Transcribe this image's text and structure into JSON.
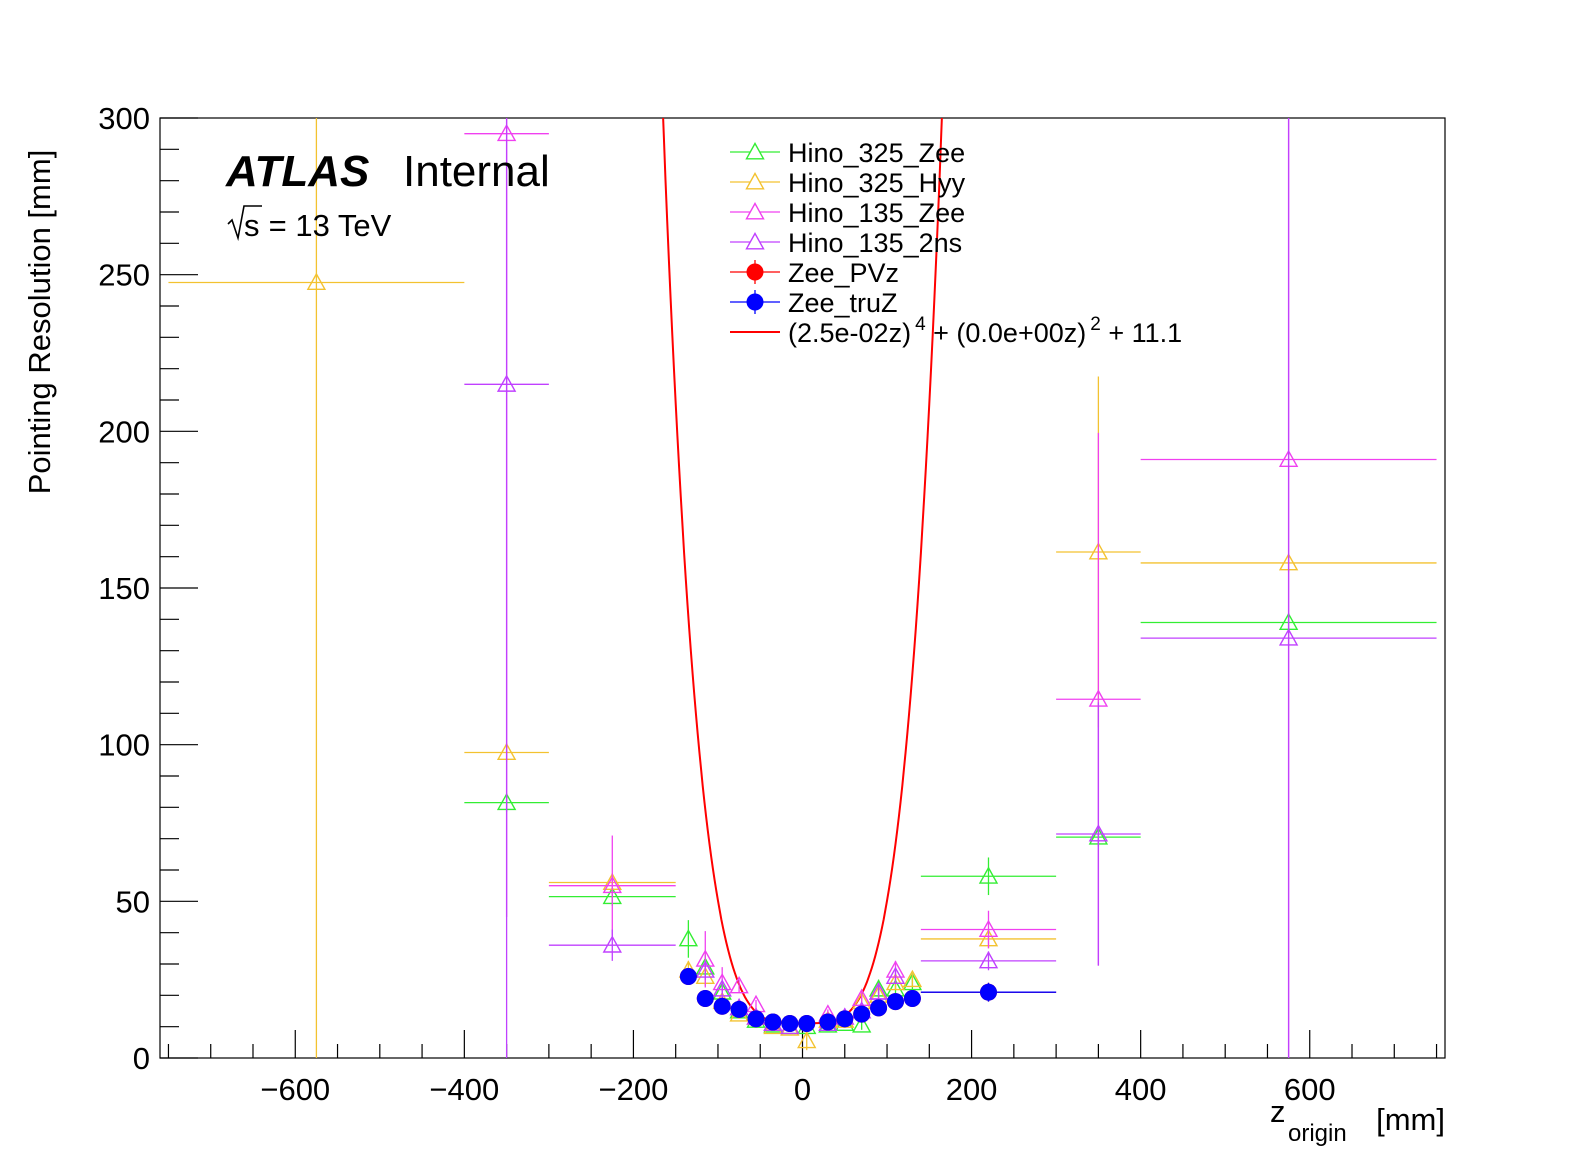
{
  "chart_data": {
    "type": "scatter",
    "title": "",
    "xlabel": "z",
    "xlabel_sub": "origin",
    "xlabel_unit": "[mm]",
    "ylabel": "Pointing Resolution [mm]",
    "xlim": [
      -760,
      760
    ],
    "ylim": [
      0,
      300
    ],
    "x_ticks": [
      -600,
      -400,
      -200,
      0,
      200,
      400,
      600
    ],
    "x_tick_labels": [
      "−600",
      "−400",
      "−200",
      "0",
      "200",
      "400",
      "600"
    ],
    "y_ticks": [
      0,
      50,
      100,
      150,
      200,
      250,
      300
    ],
    "y_tick_labels": [
      "0",
      "50",
      "100",
      "150",
      "200",
      "250",
      "300"
    ],
    "grid": false,
    "legend_position": "top-center",
    "annotations": {
      "experiment": "ATLAS",
      "status": "Internal",
      "energy_prefix": "s",
      "energy_suffix": " = 13 TeV"
    },
    "series": [
      {
        "name": "Hino_325_Zee",
        "marker": "open-triangle",
        "color": "#33ee33",
        "points": [
          {
            "x": -350,
            "xerr": 50,
            "y": 81.5,
            "yerr": 3
          },
          {
            "x": -225,
            "xerr": 75,
            "y": 51.5,
            "yerr": 3
          },
          {
            "x": -135,
            "xerr": 0,
            "y": 38,
            "yerr": 6
          },
          {
            "x": -115,
            "xerr": 0,
            "y": 29,
            "yerr": 4
          },
          {
            "x": -95,
            "xerr": 0,
            "y": 21,
            "yerr": 2
          },
          {
            "x": -75,
            "xerr": 0,
            "y": 15,
            "yerr": 1.5
          },
          {
            "x": -55,
            "xerr": 0,
            "y": 12,
            "yerr": 1
          },
          {
            "x": -35,
            "xerr": 0,
            "y": 10.5,
            "yerr": 1
          },
          {
            "x": -15,
            "xerr": 0,
            "y": 10,
            "yerr": 1
          },
          {
            "x": 5,
            "xerr": 0,
            "y": 10,
            "yerr": 1
          },
          {
            "x": 30,
            "xerr": 0,
            "y": 10.5,
            "yerr": 1
          },
          {
            "x": 50,
            "xerr": 0,
            "y": 11,
            "yerr": 1
          },
          {
            "x": 70,
            "xerr": 0,
            "y": 10.5,
            "yerr": 1.5
          },
          {
            "x": 90,
            "xerr": 0,
            "y": 22,
            "yerr": 3
          },
          {
            "x": 110,
            "xerr": 0,
            "y": 22,
            "yerr": 3
          },
          {
            "x": 130,
            "xerr": 0,
            "y": 24,
            "yerr": 3
          },
          {
            "x": 220,
            "xerr": 80,
            "y": 58,
            "yerr": 6
          },
          {
            "x": 350,
            "xerr": 50,
            "y": 70.5,
            "yerr": 3
          },
          {
            "x": 575,
            "xerr": 175,
            "y": 139,
            "yerr": 3
          }
        ]
      },
      {
        "name": "Hino_325_Hyy",
        "marker": "open-triangle",
        "color": "#f3c230",
        "points": [
          {
            "x": -575,
            "xerr": 175,
            "y": 247.5,
            "yerr": 280
          },
          {
            "x": -350,
            "xerr": 50,
            "y": 97.5,
            "yerr": 3
          },
          {
            "x": -225,
            "xerr": 75,
            "y": 56,
            "yerr": 3
          },
          {
            "x": -135,
            "xerr": 0,
            "y": 28,
            "yerr": 3
          },
          {
            "x": -115,
            "xerr": 0,
            "y": 26,
            "yerr": 3
          },
          {
            "x": -95,
            "xerr": 0,
            "y": 18,
            "yerr": 2
          },
          {
            "x": -75,
            "xerr": 0,
            "y": 14,
            "yerr": 1.5
          },
          {
            "x": -55,
            "xerr": 0,
            "y": 13,
            "yerr": 1
          },
          {
            "x": -35,
            "xerr": 0,
            "y": 10,
            "yerr": 1
          },
          {
            "x": -15,
            "xerr": 0,
            "y": 9.5,
            "yerr": 1
          },
          {
            "x": 5,
            "xerr": 0,
            "y": 5.5,
            "yerr": 3
          },
          {
            "x": 30,
            "xerr": 0,
            "y": 12,
            "yerr": 1
          },
          {
            "x": 50,
            "xerr": 0,
            "y": 12,
            "yerr": 1
          },
          {
            "x": 70,
            "xerr": 0,
            "y": 18,
            "yerr": 2
          },
          {
            "x": 90,
            "xerr": 0,
            "y": 20,
            "yerr": 2
          },
          {
            "x": 110,
            "xerr": 0,
            "y": 24,
            "yerr": 2
          },
          {
            "x": 130,
            "xerr": 0,
            "y": 25,
            "yerr": 2
          },
          {
            "x": 220,
            "xerr": 80,
            "y": 38,
            "yerr": 3
          },
          {
            "x": 350,
            "xerr": 50,
            "y": 161.5,
            "yerr": 56
          },
          {
            "x": 575,
            "xerr": 175,
            "y": 158,
            "yerr": 3
          }
        ]
      },
      {
        "name": "Hino_135_Zee",
        "marker": "open-triangle",
        "color": "#f040f0",
        "points": [
          {
            "x": -350,
            "xerr": 50,
            "y": 295,
            "yerr": 250
          },
          {
            "x": -225,
            "xerr": 75,
            "y": 55,
            "yerr": 16
          },
          {
            "x": -115,
            "xerr": 0,
            "y": 31.5,
            "yerr": 9
          },
          {
            "x": -95,
            "xerr": 0,
            "y": 24,
            "yerr": 5
          },
          {
            "x": -75,
            "xerr": 0,
            "y": 23,
            "yerr": 2
          },
          {
            "x": -55,
            "xerr": 0,
            "y": 17,
            "yerr": 1.5
          },
          {
            "x": -35,
            "xerr": 0,
            "y": 11,
            "yerr": 1
          },
          {
            "x": 30,
            "xerr": 0,
            "y": 14,
            "yerr": 1.5
          },
          {
            "x": 70,
            "xerr": 0,
            "y": 19,
            "yerr": 2
          },
          {
            "x": 90,
            "xerr": 0,
            "y": 21,
            "yerr": 2
          },
          {
            "x": 110,
            "xerr": 0,
            "y": 28,
            "yerr": 3
          },
          {
            "x": 220,
            "xerr": 80,
            "y": 41,
            "yerr": 6
          },
          {
            "x": 350,
            "xerr": 50,
            "y": 114.5,
            "yerr": 85
          },
          {
            "x": 575,
            "xerr": 175,
            "y": 191,
            "yerr": 250
          }
        ]
      },
      {
        "name": "Hino_135_2ns",
        "marker": "open-triangle",
        "color": "#c040ff",
        "points": [
          {
            "x": -350,
            "xerr": 50,
            "y": 215,
            "yerr": 230
          },
          {
            "x": -225,
            "xerr": 75,
            "y": 36,
            "yerr": 5
          },
          {
            "x": -115,
            "xerr": 0,
            "y": 28,
            "yerr": 3
          },
          {
            "x": -95,
            "xerr": 0,
            "y": 22,
            "yerr": 3
          },
          {
            "x": -75,
            "xerr": 0,
            "y": 16,
            "yerr": 2
          },
          {
            "x": -55,
            "xerr": 0,
            "y": 13,
            "yerr": 1
          },
          {
            "x": -35,
            "xerr": 0,
            "y": 11,
            "yerr": 1
          },
          {
            "x": -15,
            "xerr": 0,
            "y": 10,
            "yerr": 1
          },
          {
            "x": 30,
            "xerr": 0,
            "y": 11,
            "yerr": 1
          },
          {
            "x": 50,
            "xerr": 0,
            "y": 13,
            "yerr": 1
          },
          {
            "x": 70,
            "xerr": 0,
            "y": 15,
            "yerr": 2
          },
          {
            "x": 90,
            "xerr": 0,
            "y": 21,
            "yerr": 2
          },
          {
            "x": 110,
            "xerr": 0,
            "y": 26,
            "yerr": 2
          },
          {
            "x": 220,
            "xerr": 80,
            "y": 31,
            "yerr": 3
          },
          {
            "x": 350,
            "xerr": 50,
            "y": 71.5,
            "yerr": 42
          },
          {
            "x": 575,
            "xerr": 175,
            "y": 134,
            "yerr": 250
          }
        ]
      },
      {
        "name": "Zee_PVz",
        "marker": "filled-circle",
        "color": "#ff0000",
        "points": [
          {
            "x": -135,
            "xerr": 5,
            "y": 26,
            "yerr": 1.5
          },
          {
            "x": -115,
            "xerr": 5,
            "y": 19,
            "yerr": 1
          },
          {
            "x": -95,
            "xerr": 5,
            "y": 16.5,
            "yerr": 1
          },
          {
            "x": -75,
            "xerr": 5,
            "y": 15.5,
            "yerr": 1
          },
          {
            "x": -55,
            "xerr": 5,
            "y": 12.5,
            "yerr": 0.8
          },
          {
            "x": -35,
            "xerr": 5,
            "y": 11.5,
            "yerr": 0.8
          },
          {
            "x": -15,
            "xerr": 5,
            "y": 11,
            "yerr": 0.8
          },
          {
            "x": 5,
            "xerr": 5,
            "y": 11,
            "yerr": 0.8
          },
          {
            "x": 30,
            "xerr": 5,
            "y": 11.5,
            "yerr": 0.8
          },
          {
            "x": 50,
            "xerr": 5,
            "y": 12.5,
            "yerr": 0.8
          },
          {
            "x": 70,
            "xerr": 5,
            "y": 14,
            "yerr": 1
          },
          {
            "x": 90,
            "xerr": 5,
            "y": 16,
            "yerr": 1
          },
          {
            "x": 110,
            "xerr": 5,
            "y": 18,
            "yerr": 1
          },
          {
            "x": 130,
            "xerr": 5,
            "y": 19,
            "yerr": 1
          },
          {
            "x": 220,
            "xerr": 80,
            "y": 21,
            "yerr": 3
          }
        ]
      },
      {
        "name": "Zee_truZ",
        "marker": "filled-circle",
        "color": "#0000ff",
        "points": [
          {
            "x": -135,
            "xerr": 5,
            "y": 26,
            "yerr": 1.5
          },
          {
            "x": -115,
            "xerr": 5,
            "y": 19,
            "yerr": 1
          },
          {
            "x": -95,
            "xerr": 5,
            "y": 16.5,
            "yerr": 1
          },
          {
            "x": -75,
            "xerr": 5,
            "y": 15.5,
            "yerr": 1
          },
          {
            "x": -55,
            "xerr": 5,
            "y": 12.5,
            "yerr": 0.8
          },
          {
            "x": -35,
            "xerr": 5,
            "y": 11.5,
            "yerr": 0.8
          },
          {
            "x": -15,
            "xerr": 5,
            "y": 11,
            "yerr": 0.8
          },
          {
            "x": 5,
            "xerr": 5,
            "y": 11,
            "yerr": 0.8
          },
          {
            "x": 30,
            "xerr": 5,
            "y": 11.5,
            "yerr": 0.8
          },
          {
            "x": 50,
            "xerr": 5,
            "y": 12.5,
            "yerr": 0.8
          },
          {
            "x": 70,
            "xerr": 5,
            "y": 14,
            "yerr": 1
          },
          {
            "x": 90,
            "xerr": 5,
            "y": 16,
            "yerr": 1
          },
          {
            "x": 110,
            "xerr": 5,
            "y": 18,
            "yerr": 1
          },
          {
            "x": 130,
            "xerr": 5,
            "y": 19,
            "yerr": 1
          },
          {
            "x": 220,
            "xerr": 80,
            "y": 21,
            "yerr": 3
          }
        ]
      }
    ],
    "fit": {
      "name_parts": [
        "(2.5e-02z)",
        "4",
        " + (0.0e+00z)",
        "2",
        " + 11.1"
      ],
      "color": "#ff0000",
      "a": 0.025,
      "b": 0.0,
      "c": 11.1
    }
  }
}
